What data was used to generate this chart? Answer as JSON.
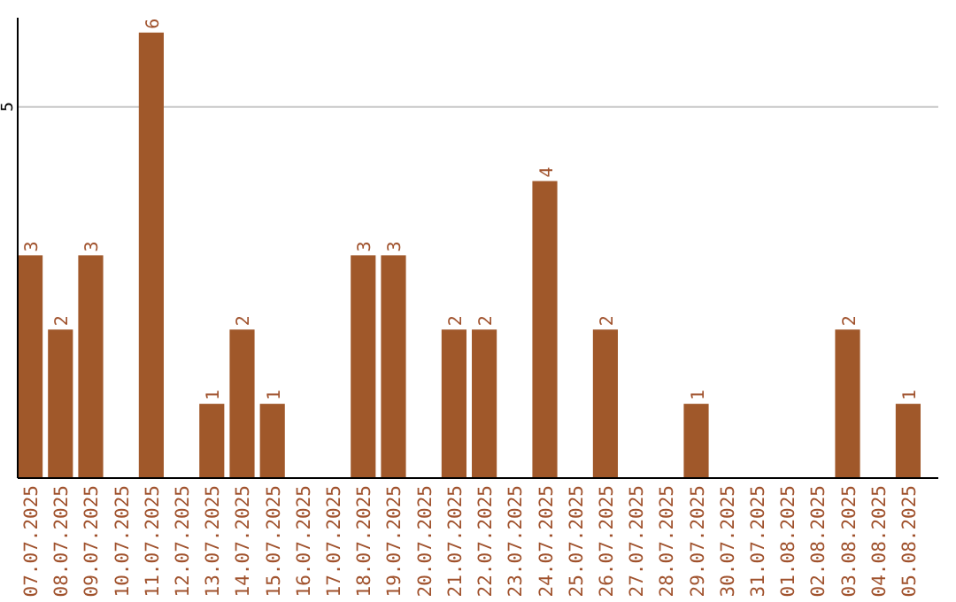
{
  "chart_data": {
    "type": "bar",
    "categories": [
      "07.07.2025",
      "08.07.2025",
      "09.07.2025",
      "10.07.2025",
      "11.07.2025",
      "12.07.2025",
      "13.07.2025",
      "14.07.2025",
      "15.07.2025",
      "16.07.2025",
      "17.07.2025",
      "18.07.2025",
      "19.07.2025",
      "20.07.2025",
      "21.07.2025",
      "22.07.2025",
      "23.07.2025",
      "24.07.2025",
      "25.07.2025",
      "26.07.2025",
      "27.07.2025",
      "28.07.2025",
      "29.07.2025",
      "30.07.2025",
      "31.07.2025",
      "01.08.2025",
      "02.08.2025",
      "03.08.2025",
      "04.08.2025",
      "05.08.2025"
    ],
    "values": [
      3,
      2,
      3,
      0,
      6,
      0,
      1,
      2,
      1,
      0,
      0,
      3,
      3,
      0,
      2,
      2,
      0,
      4,
      0,
      2,
      0,
      0,
      1,
      0,
      0,
      0,
      0,
      2,
      0,
      1
    ],
    "value_labels": [
      "3",
      "2",
      "3",
      null,
      "6",
      null,
      "1",
      "2",
      "1",
      null,
      null,
      "3",
      "3",
      null,
      "2",
      "2",
      null,
      "4",
      null,
      "2",
      null,
      null,
      "1",
      null,
      null,
      null,
      null,
      "2",
      null,
      "1"
    ],
    "color": "#a0582a",
    "ylim": [
      0,
      6.2
    ],
    "yticks": [
      5
    ],
    "grid": "y"
  }
}
